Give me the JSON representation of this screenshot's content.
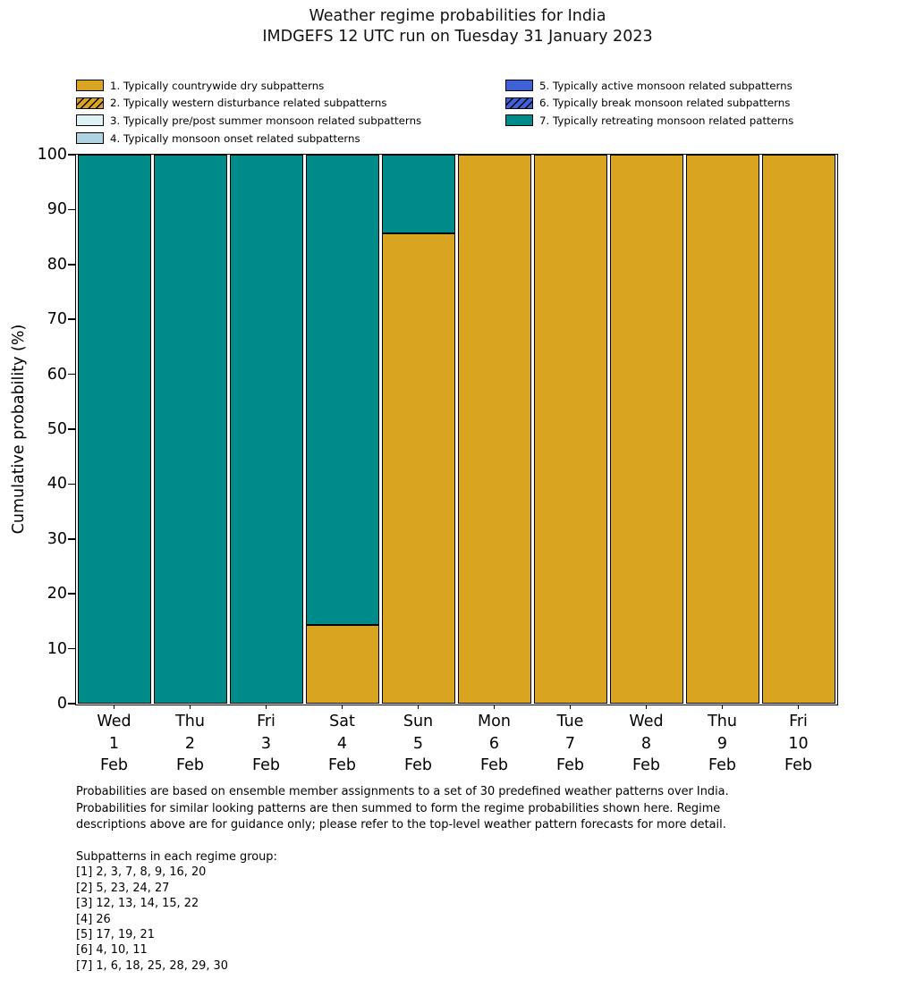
{
  "title": {
    "line1": "Weather regime probabilities for India",
    "line2": "IMDGEFS 12 UTC run on Tuesday 31 January 2023"
  },
  "chart_data": {
    "type": "bar",
    "stacked": true,
    "title": "Weather regime probabilities for India",
    "subtitle": "IMDGEFS 12 UTC run on Tuesday 31 January 2023",
    "ylabel": "Cumulative probability (%)",
    "ylim": [
      0,
      100
    ],
    "yticks": [
      0,
      10,
      20,
      30,
      40,
      50,
      60,
      70,
      80,
      90,
      100
    ],
    "grid": false,
    "legend_position": "top",
    "bar_edge_color": "#000000",
    "categories": [
      [
        "Wed",
        "1",
        "Feb"
      ],
      [
        "Thu",
        "2",
        "Feb"
      ],
      [
        "Fri",
        "3",
        "Feb"
      ],
      [
        "Sat",
        "4",
        "Feb"
      ],
      [
        "Sun",
        "5",
        "Feb"
      ],
      [
        "Mon",
        "6",
        "Feb"
      ],
      [
        "Tue",
        "7",
        "Feb"
      ],
      [
        "Wed",
        "8",
        "Feb"
      ],
      [
        "Thu",
        "9",
        "Feb"
      ],
      [
        "Fri",
        "10",
        "Feb"
      ]
    ],
    "series": [
      {
        "name": "1. Typically countrywide dry subpatterns",
        "color": "#D9A521",
        "hatch": false,
        "values": [
          0,
          0,
          0,
          14.3,
          85.7,
          100,
          100,
          100,
          100,
          100
        ]
      },
      {
        "name": "2. Typically western disturbance related subpatterns",
        "color": "#D9A521",
        "hatch": true,
        "values": [
          0,
          0,
          0,
          0,
          0,
          0,
          0,
          0,
          0,
          0
        ]
      },
      {
        "name": "3. Typically pre/post summer monsoon related subpatterns",
        "color": "#DFF2F5",
        "hatch": false,
        "values": [
          0,
          0,
          0,
          0,
          0,
          0,
          0,
          0,
          0,
          0
        ]
      },
      {
        "name": "4. Typically monsoon onset related subpatterns",
        "color": "#AFD3E1",
        "hatch": false,
        "values": [
          0,
          0,
          0,
          0,
          0,
          0,
          0,
          0,
          0,
          0
        ]
      },
      {
        "name": "5. Typically active monsoon related subpatterns",
        "color": "#3E61D9",
        "hatch": false,
        "values": [
          0,
          0,
          0,
          0,
          0,
          0,
          0,
          0,
          0,
          0
        ]
      },
      {
        "name": "6. Typically break monsoon related subpatterns",
        "color": "#3E61D9",
        "hatch": true,
        "values": [
          0,
          0,
          0,
          0,
          0,
          0,
          0,
          0,
          0,
          0
        ]
      },
      {
        "name": "7. Typically retreating monsoon related patterns",
        "color": "#008B8B",
        "hatch": false,
        "values": [
          100,
          100,
          100,
          85.7,
          14.3,
          0,
          0,
          0,
          0,
          0
        ]
      }
    ]
  },
  "legend": {
    "columns": [
      [
        0,
        1,
        2,
        3
      ],
      [
        4,
        5,
        6
      ]
    ]
  },
  "footer": {
    "paragraph_lines": [
      "Probabilities are based on ensemble member assignments to a set of 30 predefined weather patterns over India.",
      "Probabilities for similar looking patterns are then summed to form the regime probabilities shown here. Regime",
      "descriptions above are for guidance only; please refer to the top-level weather pattern forecasts for more detail."
    ],
    "subpatterns_header": "Subpatterns in each regime group:",
    "subpatterns_lines": [
      "[1] 2, 3, 7, 8, 9, 16, 20",
      "[2] 5, 23, 24, 27",
      "[3] 12, 13, 14, 15, 22",
      "[4] 26",
      "[5] 17, 19, 21",
      "[6] 4, 10, 11",
      "[7] 1, 6, 18, 25, 28, 29, 30"
    ]
  }
}
